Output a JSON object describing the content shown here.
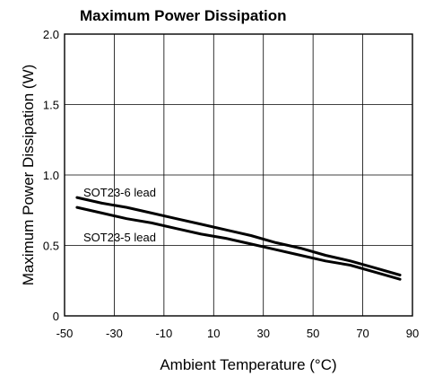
{
  "chart_data": {
    "type": "line",
    "title": "Maximum Power Dissipation",
    "xlabel": "Ambient Temperature (°C)",
    "ylabel": "Maximum Power Dissipation (W)",
    "xlim": [
      -50,
      90
    ],
    "ylim": [
      0,
      2.0
    ],
    "x_ticks": [
      -50,
      -30,
      -10,
      10,
      30,
      50,
      70,
      90
    ],
    "x_tick_labels": [
      "-50",
      "-30",
      "-10",
      "10",
      "30",
      "50",
      "70",
      "90"
    ],
    "y_ticks": [
      0,
      0.5,
      1.0,
      1.5,
      2.0
    ],
    "y_tick_labels": [
      "0",
      "0.5",
      "1.0",
      "1.5",
      "2.0"
    ],
    "grid": true,
    "series": [
      {
        "name": "SOT23-6 lead",
        "x": [
          -45,
          -35,
          -25,
          -15,
          -5,
          5,
          15,
          25,
          35,
          45,
          55,
          65,
          75,
          85
        ],
        "y": [
          0.84,
          0.8,
          0.77,
          0.73,
          0.69,
          0.65,
          0.61,
          0.57,
          0.52,
          0.48,
          0.43,
          0.39,
          0.34,
          0.29
        ]
      },
      {
        "name": "SOT23-5 lead",
        "x": [
          -45,
          -35,
          -25,
          -15,
          -5,
          5,
          15,
          25,
          35,
          45,
          55,
          65,
          75,
          85
        ],
        "y": [
          0.77,
          0.73,
          0.69,
          0.66,
          0.62,
          0.58,
          0.55,
          0.51,
          0.47,
          0.43,
          0.39,
          0.36,
          0.31,
          0.26
        ]
      }
    ]
  }
}
